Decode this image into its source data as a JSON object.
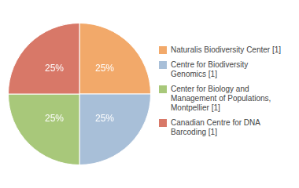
{
  "chart_data": {
    "type": "pie",
    "categories": [
      "Naturalis Biodiversity Center [1]",
      "Centre for Biodiversity\nGenomics [1]",
      "Center for Biology and\nManagement of Populations,\nMontpellier [1]",
      "Canadian Centre for DNA\nBarcoding [1]"
    ],
    "values": [
      25,
      25,
      25,
      25
    ],
    "value_labels": [
      "25%",
      "25%",
      "25%",
      "25%"
    ],
    "colors": [
      "#f2a96a",
      "#a8bfd8",
      "#a8c87a",
      "#d87868"
    ],
    "data_labels": true,
    "legend": "right"
  }
}
